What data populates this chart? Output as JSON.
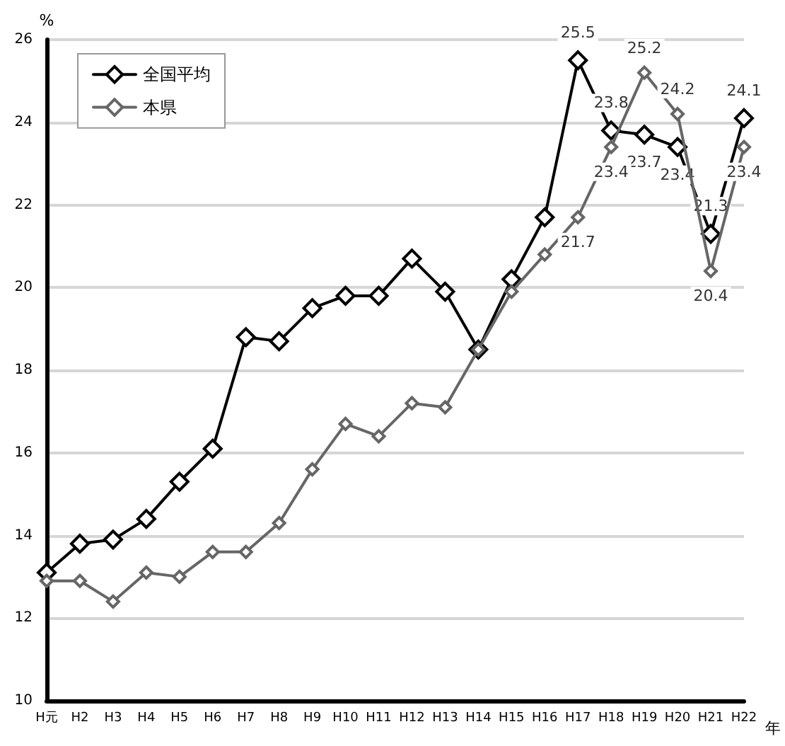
{
  "chart_data": {
    "type": "line",
    "ylabel": "%",
    "xlabel": "年",
    "categories": [
      "H元",
      "H2",
      "H3",
      "H4",
      "H5",
      "H6",
      "H7",
      "H8",
      "H9",
      "H10",
      "H11",
      "H12",
      "H13",
      "H14",
      "H15",
      "H16",
      "H17",
      "H18",
      "H19",
      "H20",
      "H21",
      "H22"
    ],
    "series": [
      {
        "name": "全国平均",
        "color": "#000000",
        "values": [
          13.1,
          13.8,
          13.9,
          14.4,
          15.3,
          16.1,
          18.8,
          18.7,
          19.5,
          19.8,
          19.8,
          20.7,
          19.9,
          18.5,
          20.2,
          21.7,
          25.5,
          23.8,
          23.7,
          23.4,
          21.3,
          24.1
        ],
        "value_labels": [
          null,
          null,
          null,
          null,
          null,
          null,
          null,
          null,
          null,
          null,
          null,
          null,
          null,
          null,
          null,
          null,
          "25.5",
          "23.8",
          "23.7",
          "23.4",
          "21.3",
          "24.1"
        ]
      },
      {
        "name": "本県",
        "color": "#666666",
        "values": [
          12.9,
          12.9,
          12.4,
          13.1,
          13.0,
          13.6,
          13.6,
          14.3,
          15.6,
          16.7,
          16.4,
          17.2,
          17.1,
          18.5,
          19.9,
          20.8,
          21.7,
          23.4,
          25.2,
          24.2,
          20.4,
          23.4
        ],
        "value_labels": [
          null,
          null,
          null,
          null,
          null,
          null,
          null,
          null,
          null,
          null,
          null,
          null,
          null,
          null,
          null,
          null,
          "21.7",
          "23.4",
          "25.2",
          "24.2",
          "20.4",
          "23.4"
        ]
      }
    ],
    "ylim": [
      10,
      26
    ],
    "yticks": [
      10,
      12,
      14,
      16,
      18,
      20,
      22,
      24,
      26
    ],
    "grid": "y",
    "legend": "top left",
    "marker": "diamond",
    "line_style": "solid"
  }
}
